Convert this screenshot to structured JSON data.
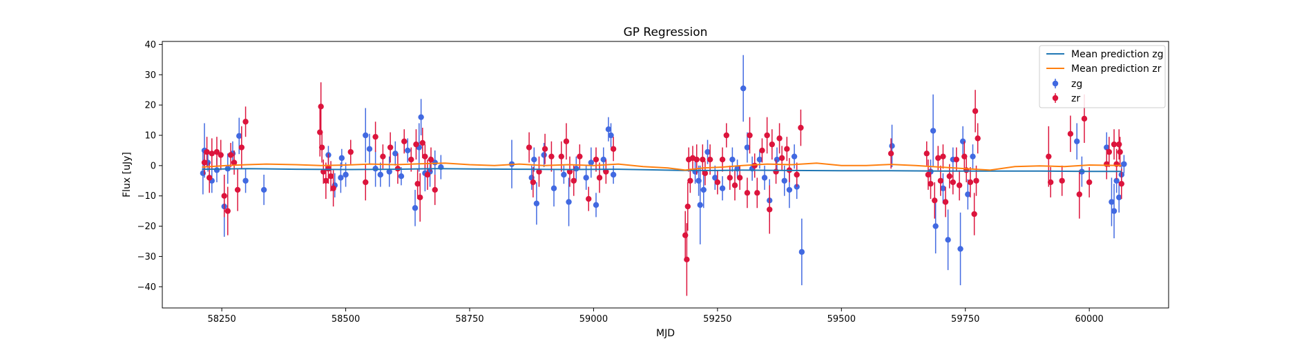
{
  "chart_data": {
    "type": "scatter",
    "title": "GP Regression",
    "xlabel": "MJD",
    "ylabel": "Flux [uJy]",
    "xlim": [
      58130,
      60160
    ],
    "ylim": [
      -47,
      41
    ],
    "xticks": [
      58250,
      58500,
      58750,
      59000,
      59250,
      59500,
      59750,
      60000
    ],
    "yticks": [
      -40,
      -30,
      -20,
      -10,
      0,
      10,
      20,
      30,
      40
    ],
    "grid": false,
    "legend_position": "top-right",
    "legend": [
      "Mean prediction zg",
      "Mean prediction zr",
      "zg",
      "zr"
    ],
    "lines": [
      {
        "name": "Mean prediction zg",
        "color": "#1f77b4",
        "x": [
          58210,
          58300,
          58400,
          58500,
          58600,
          58680,
          58760,
          58850,
          58950,
          59050,
          59120,
          59180,
          59250,
          59300,
          59400,
          59500,
          59600,
          59700,
          59800,
          59900,
          60000,
          60065
        ],
        "y": [
          -1.2,
          -1.0,
          -1.2,
          -1.3,
          -1.2,
          -1.0,
          -1.1,
          -1.2,
          -1.3,
          -1.2,
          -1.4,
          -1.6,
          -1.6,
          -1.5,
          -1.6,
          -1.7,
          -1.7,
          -1.8,
          -1.8,
          -1.8,
          -1.9,
          -1.9
        ]
      },
      {
        "name": "Mean prediction zr",
        "color": "#ff7f0e",
        "x": [
          58210,
          58260,
          58300,
          58340,
          58400,
          58450,
          58500,
          58550,
          58600,
          58650,
          58700,
          58750,
          58800,
          58850,
          58900,
          58950,
          59000,
          59050,
          59100,
          59150,
          59185,
          59220,
          59260,
          59300,
          59350,
          59400,
          59450,
          59500,
          59550,
          59600,
          59650,
          59700,
          59750,
          59800,
          59850,
          59900,
          59950,
          60000,
          60065
        ],
        "y": [
          -0.5,
          0.0,
          0.3,
          0.5,
          0.3,
          0.0,
          0.2,
          0.5,
          0.3,
          0.6,
          0.8,
          0.3,
          0.0,
          0.5,
          0.0,
          0.3,
          0.0,
          0.5,
          -0.3,
          -0.8,
          -1.5,
          -0.8,
          -0.5,
          0.0,
          0.5,
          0.3,
          0.8,
          0.0,
          0.0,
          0.4,
          0.0,
          -0.5,
          -1.0,
          -1.5,
          -0.3,
          -0.1,
          -0.3,
          0.2,
          0.0
        ]
      }
    ],
    "series": [
      {
        "name": "zg",
        "color": "#4169e1",
        "points": [
          [
            58212,
            -2.5,
            7
          ],
          [
            58215,
            5.0,
            9
          ],
          [
            58222,
            1.0,
            3
          ],
          [
            58230,
            -5.0,
            4
          ],
          [
            58240,
            -1.5,
            4
          ],
          [
            58255,
            -13.5,
            10
          ],
          [
            58262,
            -1.0,
            5
          ],
          [
            58272,
            4.0,
            4
          ],
          [
            58285,
            9.8,
            6
          ],
          [
            58298,
            -5.0,
            4
          ],
          [
            58335,
            -8.0,
            5
          ],
          [
            58465,
            3.5,
            3
          ],
          [
            58478,
            -6.5,
            4
          ],
          [
            58490,
            -4.0,
            5
          ],
          [
            58492,
            2.5,
            3
          ],
          [
            58500,
            -3.0,
            4
          ],
          [
            58540,
            10.0,
            9
          ],
          [
            58548,
            5.5,
            5
          ],
          [
            58560,
            -1.0,
            6
          ],
          [
            58570,
            -3.0,
            4
          ],
          [
            58588,
            -2.0,
            5
          ],
          [
            58600,
            4.0,
            4
          ],
          [
            58612,
            -3.5,
            3
          ],
          [
            58625,
            5.0,
            4
          ],
          [
            58640,
            -14.0,
            6
          ],
          [
            58648,
            6.0,
            8
          ],
          [
            58652,
            16.0,
            6
          ],
          [
            58660,
            -2.5,
            6
          ],
          [
            58670,
            -2.0,
            5
          ],
          [
            58680,
            1.0,
            4
          ],
          [
            58692,
            -0.5,
            4
          ],
          [
            58835,
            0.5,
            8
          ],
          [
            58875,
            -4.0,
            4
          ],
          [
            58880,
            2.0,
            4
          ],
          [
            58885,
            -12.5,
            7
          ],
          [
            58900,
            3.5,
            4
          ],
          [
            58920,
            -7.5,
            6
          ],
          [
            58940,
            -3.0,
            3
          ],
          [
            58950,
            -12.0,
            8
          ],
          [
            58965,
            -1.0,
            4
          ],
          [
            58985,
            -4.0,
            4
          ],
          [
            58995,
            1.0,
            5
          ],
          [
            59005,
            -13.0,
            4
          ],
          [
            59020,
            2.0,
            4
          ],
          [
            59030,
            12.0,
            4
          ],
          [
            59035,
            10.0,
            4
          ],
          [
            59040,
            -3.0,
            3
          ],
          [
            59205,
            -2.0,
            4
          ],
          [
            59212,
            -5.0,
            5
          ],
          [
            59215,
            -13.0,
            13
          ],
          [
            59222,
            -8.0,
            6
          ],
          [
            59230,
            4.5,
            4
          ],
          [
            59245,
            -4.0,
            4
          ],
          [
            59260,
            -7.5,
            4
          ],
          [
            59280,
            2.0,
            4
          ],
          [
            59290,
            -1.0,
            3
          ],
          [
            59302,
            25.5,
            11
          ],
          [
            59310,
            6.0,
            5
          ],
          [
            59320,
            -1.0,
            4
          ],
          [
            59335,
            2.0,
            3
          ],
          [
            59345,
            -4.0,
            4
          ],
          [
            59355,
            -11.5,
            7
          ],
          [
            59370,
            2.0,
            4
          ],
          [
            59385,
            -5.0,
            5
          ],
          [
            59395,
            -8.0,
            6
          ],
          [
            59405,
            3.0,
            4
          ],
          [
            59410,
            -7.0,
            4
          ],
          [
            59420,
            -28.5,
            11
          ],
          [
            59602,
            6.5,
            7
          ],
          [
            59680,
            -2.0,
            4
          ],
          [
            59685,
            11.5,
            12
          ],
          [
            59690,
            -20.0,
            9
          ],
          [
            59705,
            -7.5,
            5
          ],
          [
            59715,
            -24.5,
            10
          ],
          [
            59725,
            2.0,
            4
          ],
          [
            59740,
            -27.5,
            12
          ],
          [
            59745,
            8.0,
            5
          ],
          [
            59755,
            -9.5,
            5
          ],
          [
            59765,
            3.0,
            4
          ],
          [
            59975,
            8.0,
            6
          ],
          [
            59985,
            -2.0,
            5
          ],
          [
            60035,
            6.0,
            5
          ],
          [
            60045,
            -12.0,
            8
          ],
          [
            60050,
            -15.0,
            9
          ],
          [
            60055,
            -5.0,
            4
          ],
          [
            60060,
            -10.5,
            5
          ],
          [
            60065,
            -3.0,
            4
          ],
          [
            60070,
            0.5,
            3
          ]
        ]
      },
      {
        "name": "zr",
        "color": "#dc143c",
        "points": [
          [
            58215,
            1.0,
            4
          ],
          [
            58220,
            4.5,
            5
          ],
          [
            58225,
            -4.0,
            5
          ],
          [
            58230,
            4.0,
            5
          ],
          [
            58240,
            4.5,
            5
          ],
          [
            58248,
            3.5,
            5
          ],
          [
            58255,
            -10.0,
            7
          ],
          [
            58262,
            -15.0,
            8
          ],
          [
            58268,
            3.5,
            4
          ],
          [
            58275,
            1.0,
            4
          ],
          [
            58282,
            -8.0,
            7
          ],
          [
            58290,
            6.0,
            7
          ],
          [
            58298,
            14.5,
            5
          ],
          [
            58448,
            11.0,
            8
          ],
          [
            58450,
            19.5,
            8
          ],
          [
            58452,
            6.0,
            5
          ],
          [
            58455,
            -2.0,
            4
          ],
          [
            58460,
            -5.0,
            6
          ],
          [
            58465,
            -1.0,
            5
          ],
          [
            58470,
            -3.5,
            5
          ],
          [
            58475,
            -7.5,
            6
          ],
          [
            58510,
            4.5,
            4
          ],
          [
            58540,
            -5.5,
            6
          ],
          [
            58560,
            9.5,
            5
          ],
          [
            58575,
            3.0,
            4
          ],
          [
            58590,
            6.0,
            5
          ],
          [
            58605,
            -1.0,
            5
          ],
          [
            58618,
            8.0,
            4
          ],
          [
            58632,
            2.0,
            4
          ],
          [
            58642,
            7.0,
            5
          ],
          [
            58645,
            -6.0,
            5
          ],
          [
            58650,
            -10.5,
            8
          ],
          [
            58655,
            7.5,
            5
          ],
          [
            58660,
            3.0,
            4
          ],
          [
            58665,
            -3.0,
            5
          ],
          [
            58672,
            2.0,
            4
          ],
          [
            58680,
            -8.0,
            5
          ],
          [
            58870,
            6.0,
            5
          ],
          [
            58878,
            -5.5,
            5
          ],
          [
            58890,
            -2.0,
            5
          ],
          [
            58902,
            5.5,
            5
          ],
          [
            58915,
            3.0,
            5
          ],
          [
            58935,
            3.0,
            5
          ],
          [
            58945,
            8.0,
            6
          ],
          [
            58952,
            -2.0,
            5
          ],
          [
            58960,
            -5.0,
            5
          ],
          [
            58972,
            3.0,
            4
          ],
          [
            58990,
            -11.0,
            4
          ],
          [
            59005,
            2.0,
            4
          ],
          [
            59012,
            -4.0,
            5
          ],
          [
            59025,
            -2.0,
            4
          ],
          [
            59040,
            5.5,
            4
          ],
          [
            59185,
            -23.0,
            8
          ],
          [
            59188,
            -31.0,
            12
          ],
          [
            59190,
            -13.5,
            8
          ],
          [
            59192,
            2.0,
            4
          ],
          [
            59195,
            -5.0,
            4
          ],
          [
            59200,
            2.5,
            4
          ],
          [
            59208,
            2.0,
            5
          ],
          [
            59220,
            2.0,
            5
          ],
          [
            59225,
            -2.5,
            4
          ],
          [
            59235,
            2.0,
            5
          ],
          [
            59250,
            -5.5,
            4
          ],
          [
            59260,
            2.0,
            4
          ],
          [
            59268,
            10.0,
            4
          ],
          [
            59275,
            -4.0,
            4
          ],
          [
            59285,
            -6.5,
            5
          ],
          [
            59295,
            -4.0,
            4
          ],
          [
            59310,
            -9.0,
            5
          ],
          [
            59315,
            10.0,
            6
          ],
          [
            59325,
            0.0,
            4
          ],
          [
            59330,
            -9.0,
            5
          ],
          [
            59340,
            5.0,
            4
          ],
          [
            59350,
            10.0,
            6
          ],
          [
            59355,
            -14.5,
            8
          ],
          [
            59360,
            7.0,
            5
          ],
          [
            59368,
            -2.0,
            4
          ],
          [
            59375,
            9.0,
            5
          ],
          [
            59380,
            2.5,
            4
          ],
          [
            59390,
            5.5,
            4
          ],
          [
            59395,
            -1.5,
            4
          ],
          [
            59410,
            -3.0,
            4
          ],
          [
            59418,
            12.5,
            6
          ],
          [
            59600,
            4.0,
            5
          ],
          [
            59672,
            4.0,
            4
          ],
          [
            59675,
            -3.0,
            5
          ],
          [
            59680,
            -6.0,
            5
          ],
          [
            59688,
            -11.5,
            6
          ],
          [
            59695,
            2.5,
            4
          ],
          [
            59700,
            -5.0,
            5
          ],
          [
            59705,
            3.0,
            4
          ],
          [
            59710,
            -12.0,
            5
          ],
          [
            59718,
            -3.5,
            4
          ],
          [
            59725,
            -5.5,
            4
          ],
          [
            59732,
            2.0,
            4
          ],
          [
            59738,
            -6.5,
            5
          ],
          [
            59748,
            3.0,
            5
          ],
          [
            59752,
            -1.5,
            4
          ],
          [
            59760,
            -5.5,
            5
          ],
          [
            59768,
            -16.0,
            7
          ],
          [
            59770,
            18.0,
            7
          ],
          [
            59772,
            -5.0,
            5
          ],
          [
            59775,
            9.0,
            5
          ],
          [
            59918,
            3.0,
            10
          ],
          [
            59922,
            -5.5,
            5
          ],
          [
            59945,
            -5.0,
            5
          ],
          [
            59962,
            10.5,
            6
          ],
          [
            59980,
            -9.5,
            8
          ],
          [
            59990,
            15.5,
            8
          ],
          [
            60000,
            -5.5,
            5
          ],
          [
            60035,
            0.5,
            5
          ],
          [
            60040,
            4.5,
            5
          ],
          [
            60050,
            7.0,
            5
          ],
          [
            60055,
            0.5,
            5
          ],
          [
            60060,
            7.0,
            5
          ],
          [
            60062,
            4.5,
            5
          ],
          [
            60065,
            -6.0,
            5
          ]
        ]
      }
    ]
  }
}
